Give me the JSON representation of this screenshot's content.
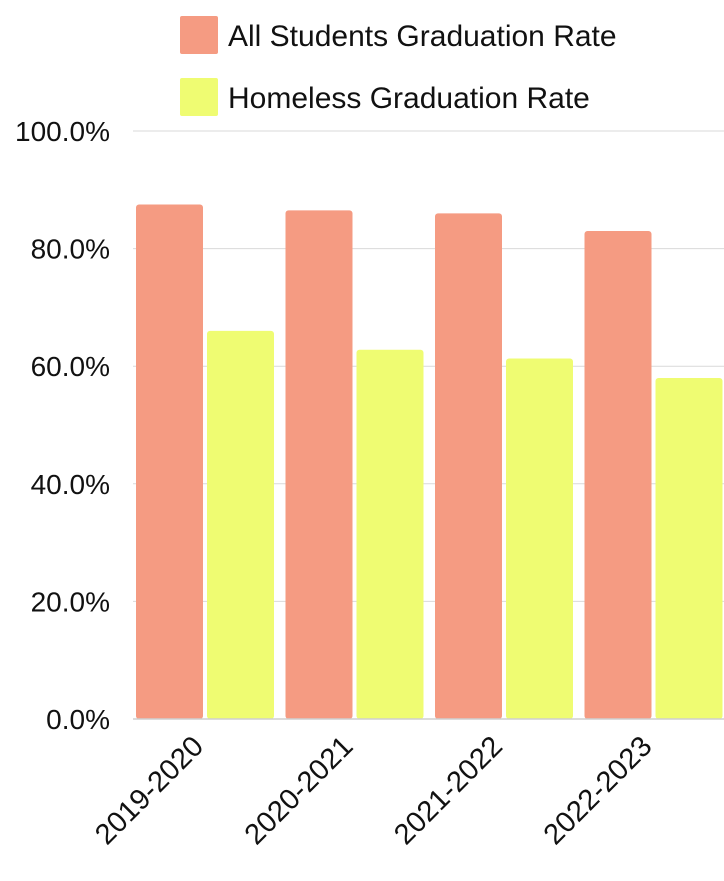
{
  "chart_data": {
    "type": "bar",
    "title": "",
    "xlabel": "",
    "ylabel": "",
    "categories": [
      "2019-2020",
      "2020-2021",
      "2021-2022",
      "2022-2023"
    ],
    "series": [
      {
        "name": "All Students Graduation Rate",
        "color": "#F59B82",
        "values": [
          87.5,
          86.5,
          86.0,
          83.0
        ]
      },
      {
        "name": "Homeless Graduation Rate",
        "color": "#EFFC72",
        "values": [
          66.0,
          62.8,
          61.3,
          58.0
        ]
      }
    ],
    "ylim": [
      0,
      100
    ],
    "yticks": [
      "0.0%",
      "20.0%",
      "40.0%",
      "60.0%",
      "80.0%",
      "100.0%"
    ],
    "grid": true,
    "legend_position": "top"
  }
}
